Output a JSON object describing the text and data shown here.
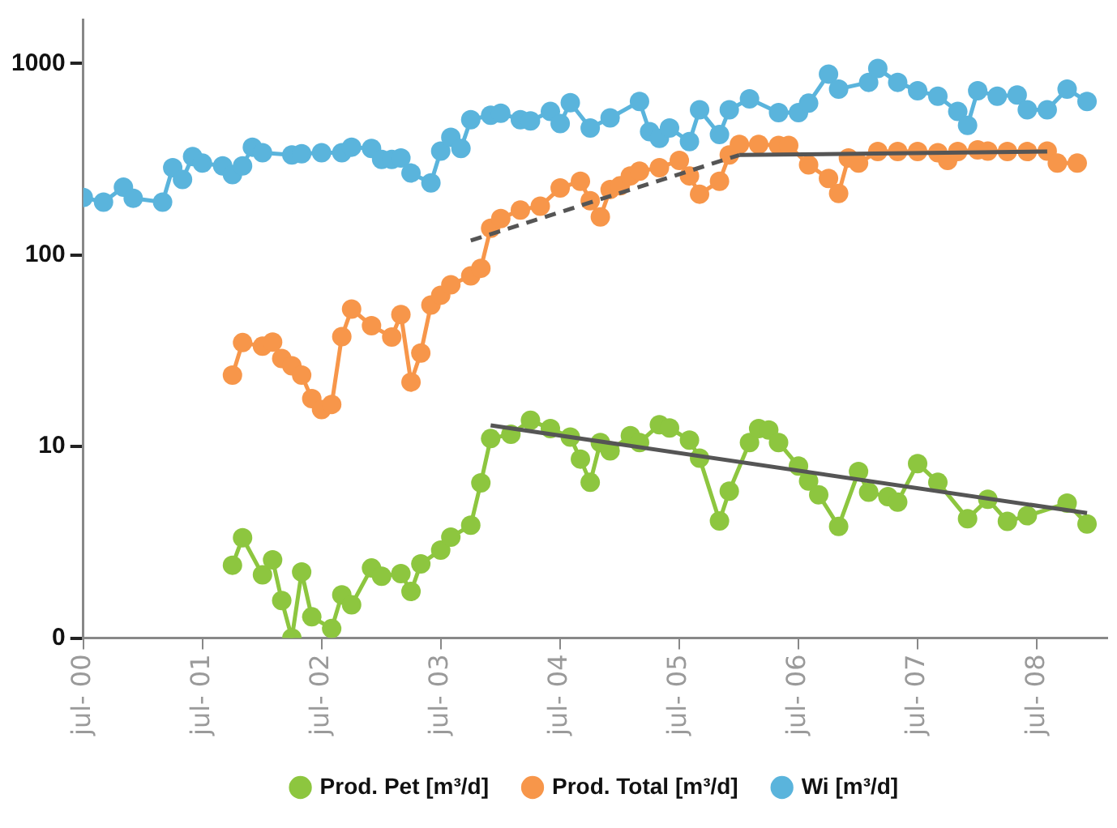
{
  "chart_data": {
    "type": "line",
    "log": "y",
    "grid": false,
    "legend": "bottom",
    "marker": "circle",
    "xlim": [
      "2000-07",
      "2009-02"
    ],
    "xticks": [
      {
        "value": "2000-07",
        "label": "jul- 00"
      },
      {
        "value": "2001-07",
        "label": "jul- 01"
      },
      {
        "value": "2002-07",
        "label": "jul- 02"
      },
      {
        "value": "2003-07",
        "label": "jul- 03"
      },
      {
        "value": "2004-07",
        "label": "jul- 04"
      },
      {
        "value": "2005-07",
        "label": "jul- 05"
      },
      {
        "value": "2006-07",
        "label": "jul- 06"
      },
      {
        "value": "2007-07",
        "label": "jul- 07"
      },
      {
        "value": "2008-07",
        "label": "jul- 08"
      }
    ],
    "ylim": [
      0,
      1700
    ],
    "yticks": [
      0,
      10,
      100,
      1000
    ],
    "series": [
      {
        "name": "Prod. Pet [m³/d]",
        "color": "#8dc63f",
        "x": [
          "2001-10",
          "2001-11",
          "2002-01",
          "2002-02",
          "2002-03",
          "2002-04",
          "2002-05",
          "2002-06",
          "2002-08",
          "2002-09",
          "2002-10",
          "2002-12",
          "2003-01",
          "2003-03",
          "2003-04",
          "2003-05",
          "2003-07",
          "2003-08",
          "2003-10",
          "2003-11",
          "2003-12",
          "2004-02",
          "2004-04",
          "2004-06",
          "2004-08",
          "2004-09",
          "2004-10",
          "2004-11",
          "2004-12",
          "2005-02",
          "2005-03",
          "2005-05",
          "2005-06",
          "2005-08",
          "2005-09",
          "2005-11",
          "2005-12",
          "2006-02",
          "2006-03",
          "2006-04",
          "2006-05",
          "2006-07",
          "2006-08",
          "2006-09",
          "2006-11",
          "2007-01",
          "2007-02",
          "2007-04",
          "2007-05",
          "2007-07",
          "2007-09",
          "2007-12",
          "2008-02",
          "2008-04",
          "2008-06",
          "2008-10",
          "2008-12"
        ],
        "values": [
          2.4,
          3.34,
          2.14,
          2.56,
          1.57,
          1,
          2.21,
          1.29,
          1.12,
          1.68,
          1.49,
          2.32,
          2.1,
          2.17,
          1.75,
          2.44,
          2.88,
          3.36,
          3.88,
          6.46,
          11,
          11.6,
          13.7,
          12.4,
          11.2,
          8.6,
          6.5,
          10.5,
          9.5,
          11.4,
          10.5,
          13,
          12.5,
          10.8,
          8.7,
          4.09,
          5.85,
          10.5,
          12.4,
          12.2,
          10.5,
          7.9,
          6.6,
          5.6,
          3.83,
          7.4,
          5.77,
          5.48,
          5.13,
          8.15,
          6.5,
          4.2,
          5.3,
          4.07,
          4.35,
          5.06,
          3.94
        ]
      },
      {
        "name": "Prod. Total [m³/d]",
        "color": "#f7964a",
        "x": [
          "2001-10",
          "2001-11",
          "2002-01",
          "2002-02",
          "2002-03",
          "2002-04",
          "2002-05",
          "2002-06",
          "2002-07",
          "2002-08",
          "2002-09",
          "2002-10",
          "2002-12",
          "2003-02",
          "2003-03",
          "2003-04",
          "2003-05",
          "2003-06",
          "2003-07",
          "2003-08",
          "2003-10",
          "2003-11",
          "2003-12",
          "2004-01",
          "2004-03",
          "2004-05",
          "2004-07",
          "2004-09",
          "2004-10",
          "2004-11",
          "2004-12",
          "2005-01",
          "2005-02",
          "2005-03",
          "2005-05",
          "2005-07",
          "2005-08",
          "2005-09",
          "2005-11",
          "2005-12",
          "2006-01",
          "2006-03",
          "2006-05",
          "2006-06",
          "2006-08",
          "2006-10",
          "2006-11",
          "2006-12",
          "2007-01",
          "2007-03",
          "2007-05",
          "2007-07",
          "2007-09",
          "2007-10",
          "2007-11",
          "2008-01",
          "2008-02",
          "2008-04",
          "2008-06",
          "2008-08",
          "2008-09",
          "2008-11"
        ],
        "values": [
          23.6,
          34.9,
          33.4,
          35.1,
          28.8,
          26.4,
          23.6,
          17.8,
          15.6,
          16.6,
          37.5,
          52.2,
          42.8,
          37.3,
          48.9,
          21.7,
          30.8,
          54.8,
          61.7,
          70,
          77.8,
          85.3,
          138,
          155,
          172,
          180,
          224,
          243,
          192,
          158,
          220,
          230,
          259,
          274,
          286,
          312,
          259,
          208,
          243,
          333,
          378,
          378,
          374,
          374,
          296,
          251,
          210,
          321,
          302,
          347,
          347,
          347,
          342,
          312,
          347,
          354,
          349,
          347,
          347,
          349,
          302,
          302
        ]
      },
      {
        "name": "Wi [m³/d]",
        "color": "#5ab4dc",
        "x": [
          "2000-07",
          "2000-09",
          "2000-11",
          "2000-12",
          "2001-03",
          "2001-04",
          "2001-05",
          "2001-06",
          "2001-07",
          "2001-09",
          "2001-10",
          "2001-11",
          "2001-12",
          "2002-01",
          "2002-04",
          "2002-05",
          "2002-07",
          "2002-09",
          "2002-10",
          "2002-12",
          "2003-01",
          "2003-02",
          "2003-03",
          "2003-04",
          "2003-06",
          "2003-07",
          "2003-08",
          "2003-09",
          "2003-10",
          "2003-12",
          "2004-01",
          "2004-03",
          "2004-04",
          "2004-06",
          "2004-07",
          "2004-08",
          "2004-10",
          "2004-12",
          "2005-03",
          "2005-04",
          "2005-05",
          "2005-06",
          "2005-08",
          "2005-09",
          "2005-11",
          "2005-12",
          "2006-02",
          "2006-05",
          "2006-07",
          "2006-08",
          "2006-10",
          "2006-11",
          "2007-02",
          "2007-03",
          "2007-05",
          "2007-07",
          "2007-09",
          "2007-11",
          "2007-12",
          "2008-01",
          "2008-03",
          "2008-05",
          "2008-06",
          "2008-08",
          "2008-10",
          "2008-12"
        ],
        "values": [
          200,
          189,
          226,
          198,
          189,
          286,
          248,
          327,
          302,
          292,
          263,
          292,
          366,
          342,
          333,
          338,
          342,
          342,
          366,
          360,
          316,
          316,
          321,
          268,
          238,
          349,
          412,
          360,
          509,
          537,
          551,
          509,
          502,
          562,
          486,
          625,
          461,
          520,
          634,
          441,
          407,
          461,
          391,
          574,
          426,
          574,
          655,
          555,
          555,
          621,
          881,
          736,
          798,
          942,
          798,
          722,
          676,
          562,
          476,
          722,
          676,
          686,
          574,
          574,
          736,
          634
        ]
      },
      {
        "type": "line",
        "color": "#555555",
        "marker": "none",
        "line_style": "dashed",
        "x": [
          "2003-10",
          "2006-01"
        ],
        "values": [
          119,
          333
        ]
      },
      {
        "type": "line",
        "color": "#555555",
        "marker": "none",
        "line_style": "solid",
        "x": [
          "2006-01",
          "2008-08"
        ],
        "values": [
          333,
          347
        ]
      },
      {
        "type": "line",
        "color": "#555555",
        "marker": "none",
        "line_style": "solid",
        "x": [
          "2003-12",
          "2008-12"
        ],
        "values": [
          12.9,
          4.49
        ]
      }
    ]
  }
}
